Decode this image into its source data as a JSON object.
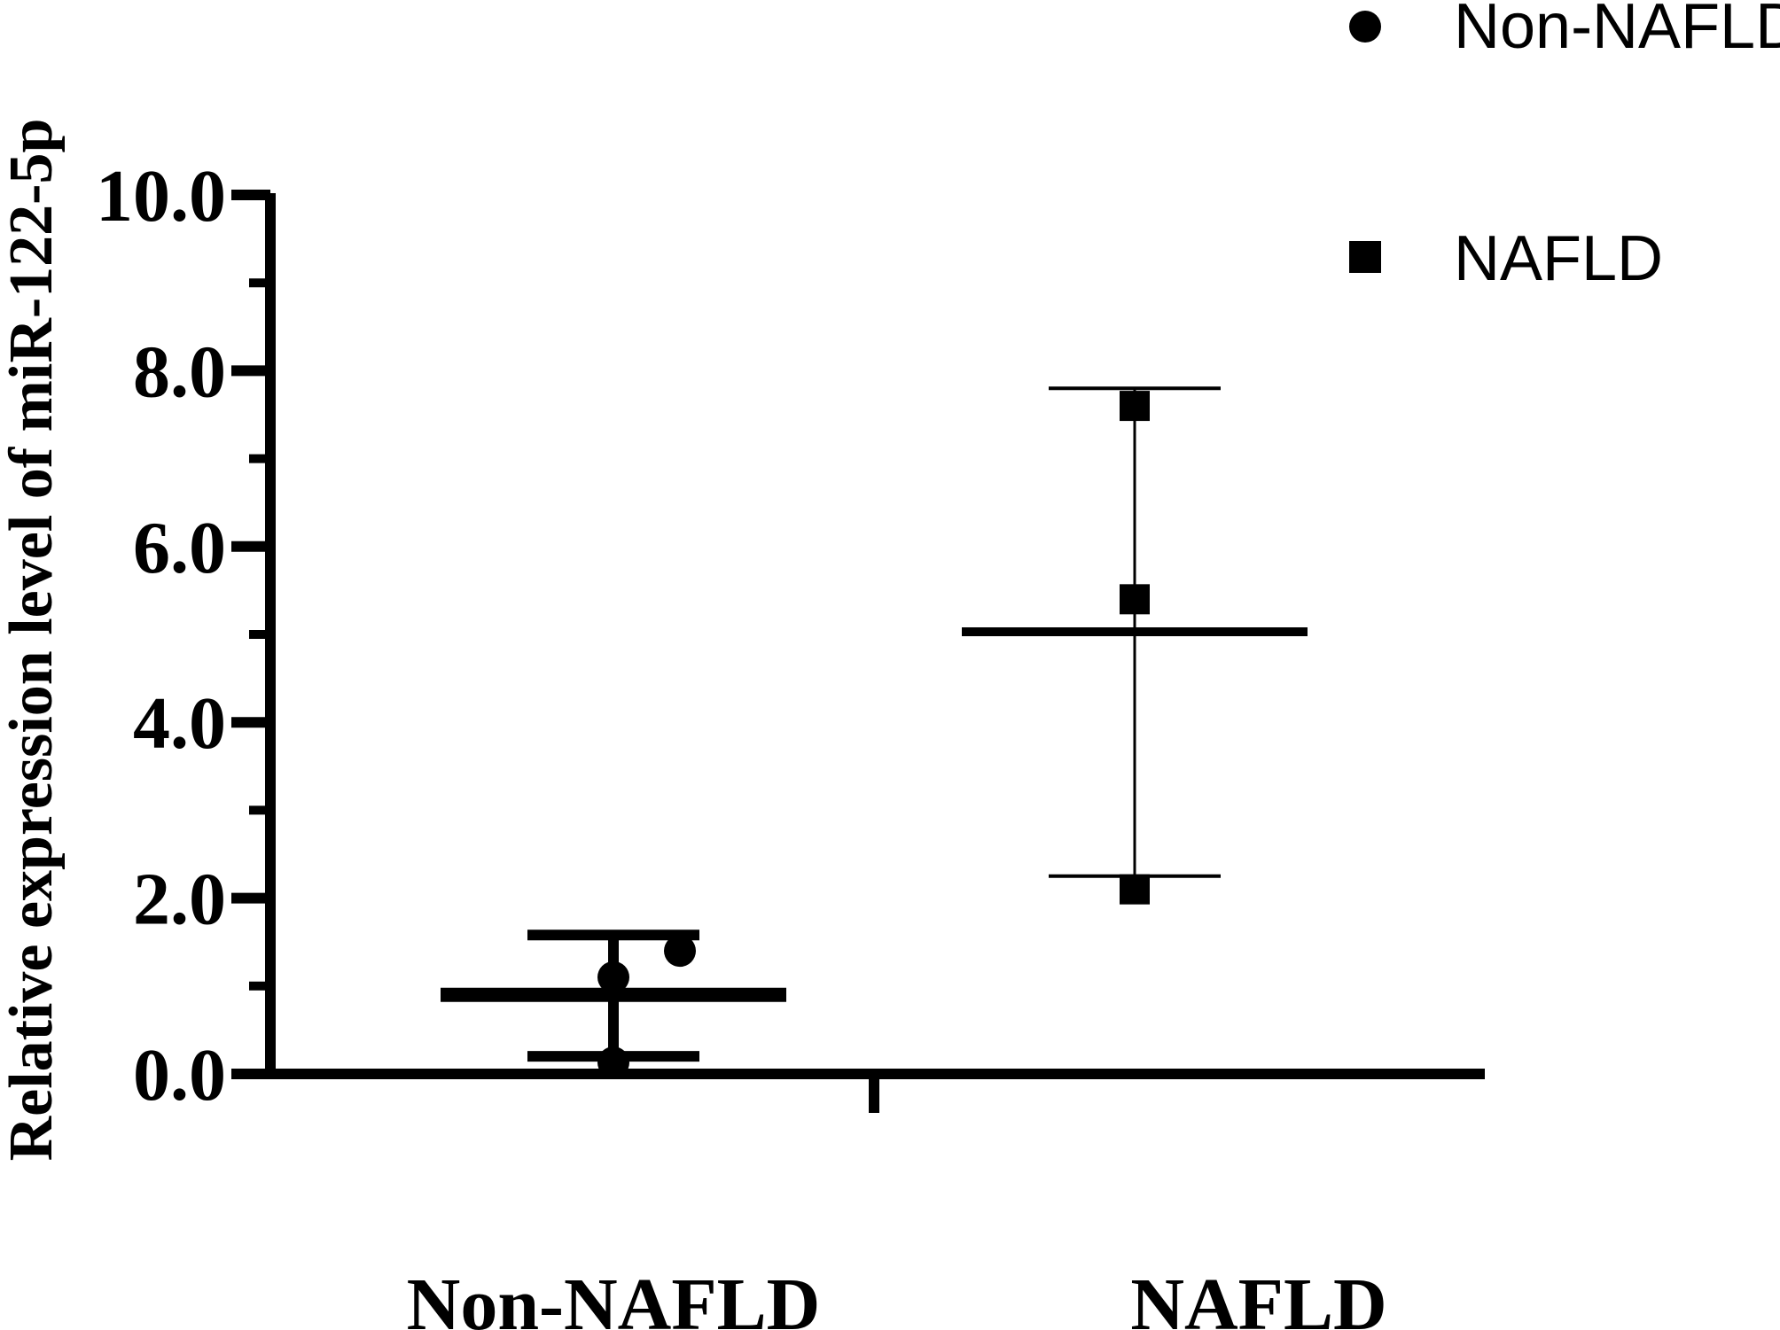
{
  "chart_data": {
    "type": "scatter",
    "ylabel": "Relative expression level of miR-122-5p",
    "ylim": [
      0,
      10
    ],
    "yticks": [
      0,
      2,
      4,
      6,
      8,
      10
    ],
    "ytick_labels": [
      "0.0",
      "2.0",
      "4.0",
      "6.0",
      "8.0",
      "10.0"
    ],
    "categories": [
      "Non-NAFLD",
      "NAFLD"
    ],
    "legend": {
      "position": "top-right"
    },
    "series": [
      {
        "name": "Non-NAFLD",
        "marker": "circle",
        "category": "Non-NAFLD",
        "points": [
          {
            "jitter": 0,
            "y": 0.13
          },
          {
            "jitter": 0,
            "y": 1.1
          },
          {
            "jitter": 0.75,
            "y": 1.4
          }
        ],
        "mean": 0.9,
        "error_low": 0.2,
        "error_high": 1.58
      },
      {
        "name": "NAFLD",
        "marker": "square",
        "category": "NAFLD",
        "points": [
          {
            "jitter": 0,
            "y": 2.1
          },
          {
            "jitter": 0,
            "y": 5.4
          },
          {
            "jitter": 0,
            "y": 7.6
          }
        ],
        "mean": 5.03,
        "error_low": 2.25,
        "error_high": 7.8
      }
    ],
    "colors": {
      "ink": "#000000"
    }
  }
}
